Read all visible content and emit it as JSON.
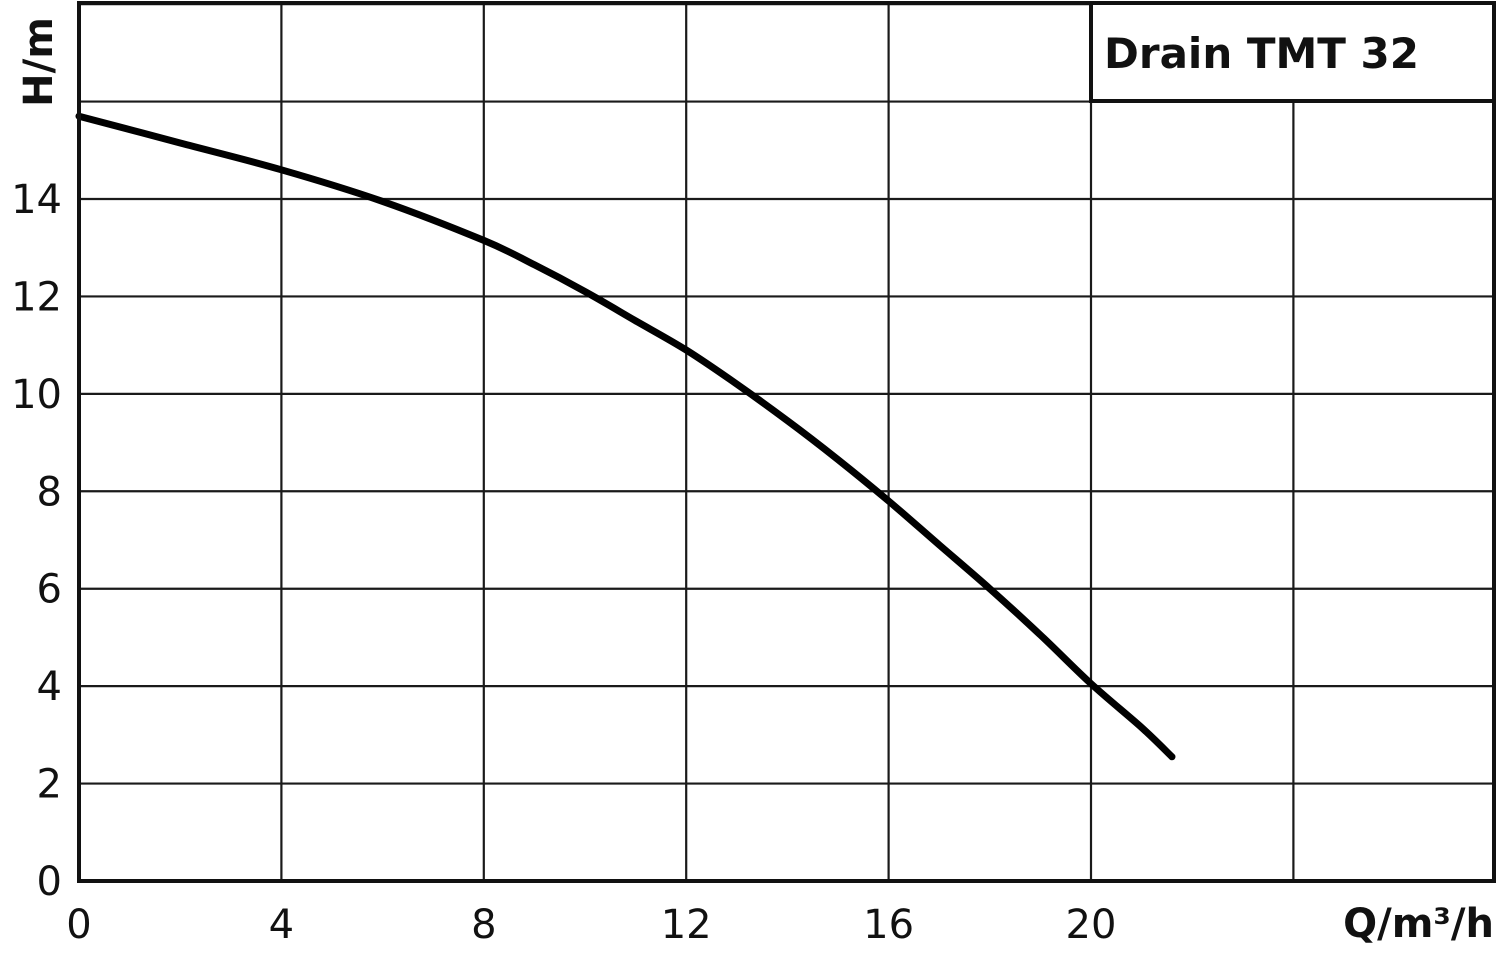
{
  "chart_data": {
    "type": "line",
    "title": "Drain TMT 32",
    "xlabel": "Q/m³/h",
    "ylabel": "H/m",
    "xlim": [
      0,
      28
    ],
    "ylim": [
      0,
      16
    ],
    "x_ticks": [
      0,
      4,
      8,
      12,
      16,
      20
    ],
    "y_ticks": [
      0,
      2,
      4,
      6,
      8,
      10,
      12,
      14
    ],
    "grid": true,
    "legend": "top-right box",
    "series": [
      {
        "color": "#000000",
        "x": [
          0,
          2,
          4,
          6,
          8,
          9,
          10,
          11,
          12,
          13,
          14,
          15,
          16,
          17,
          18,
          19,
          20,
          21,
          21.6
        ],
        "y": [
          15.7,
          15.15,
          14.6,
          13.95,
          13.15,
          12.65,
          12.1,
          11.5,
          10.9,
          10.2,
          9.45,
          8.65,
          7.8,
          6.9,
          6.0,
          5.05,
          4.05,
          3.15,
          2.55
        ]
      }
    ]
  }
}
